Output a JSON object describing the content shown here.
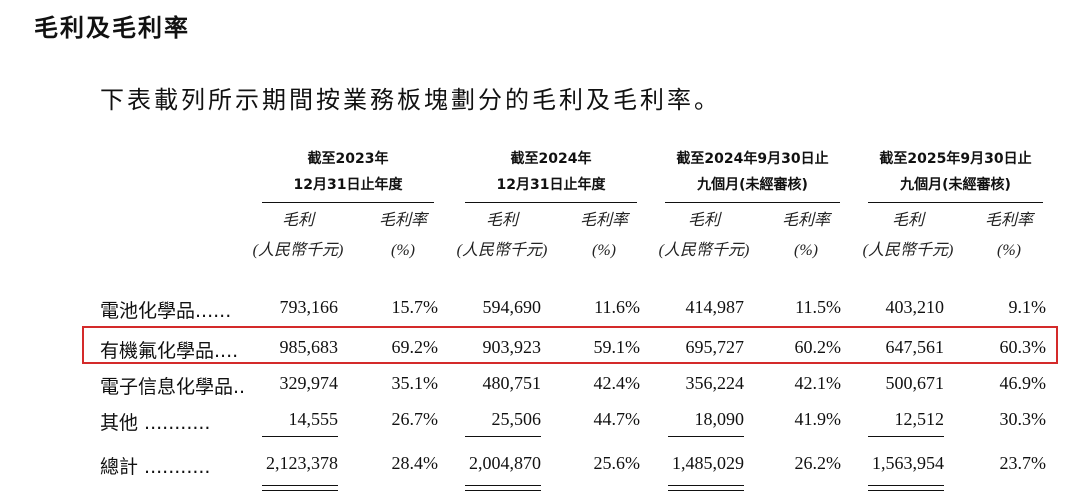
{
  "section_title": "毛利及毛利率",
  "intro": "下表載列所示期間按業務板塊劃分的毛利及毛利率。",
  "periods": [
    {
      "line1": "截至2023年",
      "line2": "12月31日止年度"
    },
    {
      "line1": "截至2024年",
      "line2": "12月31日止年度"
    },
    {
      "line1": "截至2024年9月30日止",
      "line2": "九個月(未經審核)"
    },
    {
      "line1": "截至2025年9月30日止",
      "line2": "九個月(未經審核)"
    }
  ],
  "column_headers": {
    "gross_profit": {
      "line1": "毛利",
      "line2": "(人民幣千元)"
    },
    "margin": {
      "line1": "毛利率",
      "line2": "(%)"
    }
  },
  "rows": [
    {
      "label": "電池化學品......",
      "values": [
        "793,166",
        "15.7%",
        "594,690",
        "11.6%",
        "414,987",
        "11.5%",
        "403,210",
        "9.1%"
      ]
    },
    {
      "label": "有機氟化學品....",
      "values": [
        "985,683",
        "69.2%",
        "903,923",
        "59.1%",
        "695,727",
        "60.2%",
        "647,561",
        "60.3%"
      ],
      "highlighted": true
    },
    {
      "label": "電子信息化學品..",
      "values": [
        "329,974",
        "35.1%",
        "480,751",
        "42.4%",
        "356,224",
        "42.1%",
        "500,671",
        "46.9%"
      ]
    },
    {
      "label": "其他 ...........",
      "values": [
        "14,555",
        "26.7%",
        "25,506",
        "44.7%",
        "18,090",
        "41.9%",
        "12,512",
        "30.3%"
      ]
    },
    {
      "label": "總計 ...........",
      "values": [
        "2,123,378",
        "28.4%",
        "2,004,870",
        "25.6%",
        "1,485,029",
        "26.2%",
        "1,563,954",
        "23.7%"
      ]
    }
  ],
  "highlight_color": "#d42a2a"
}
